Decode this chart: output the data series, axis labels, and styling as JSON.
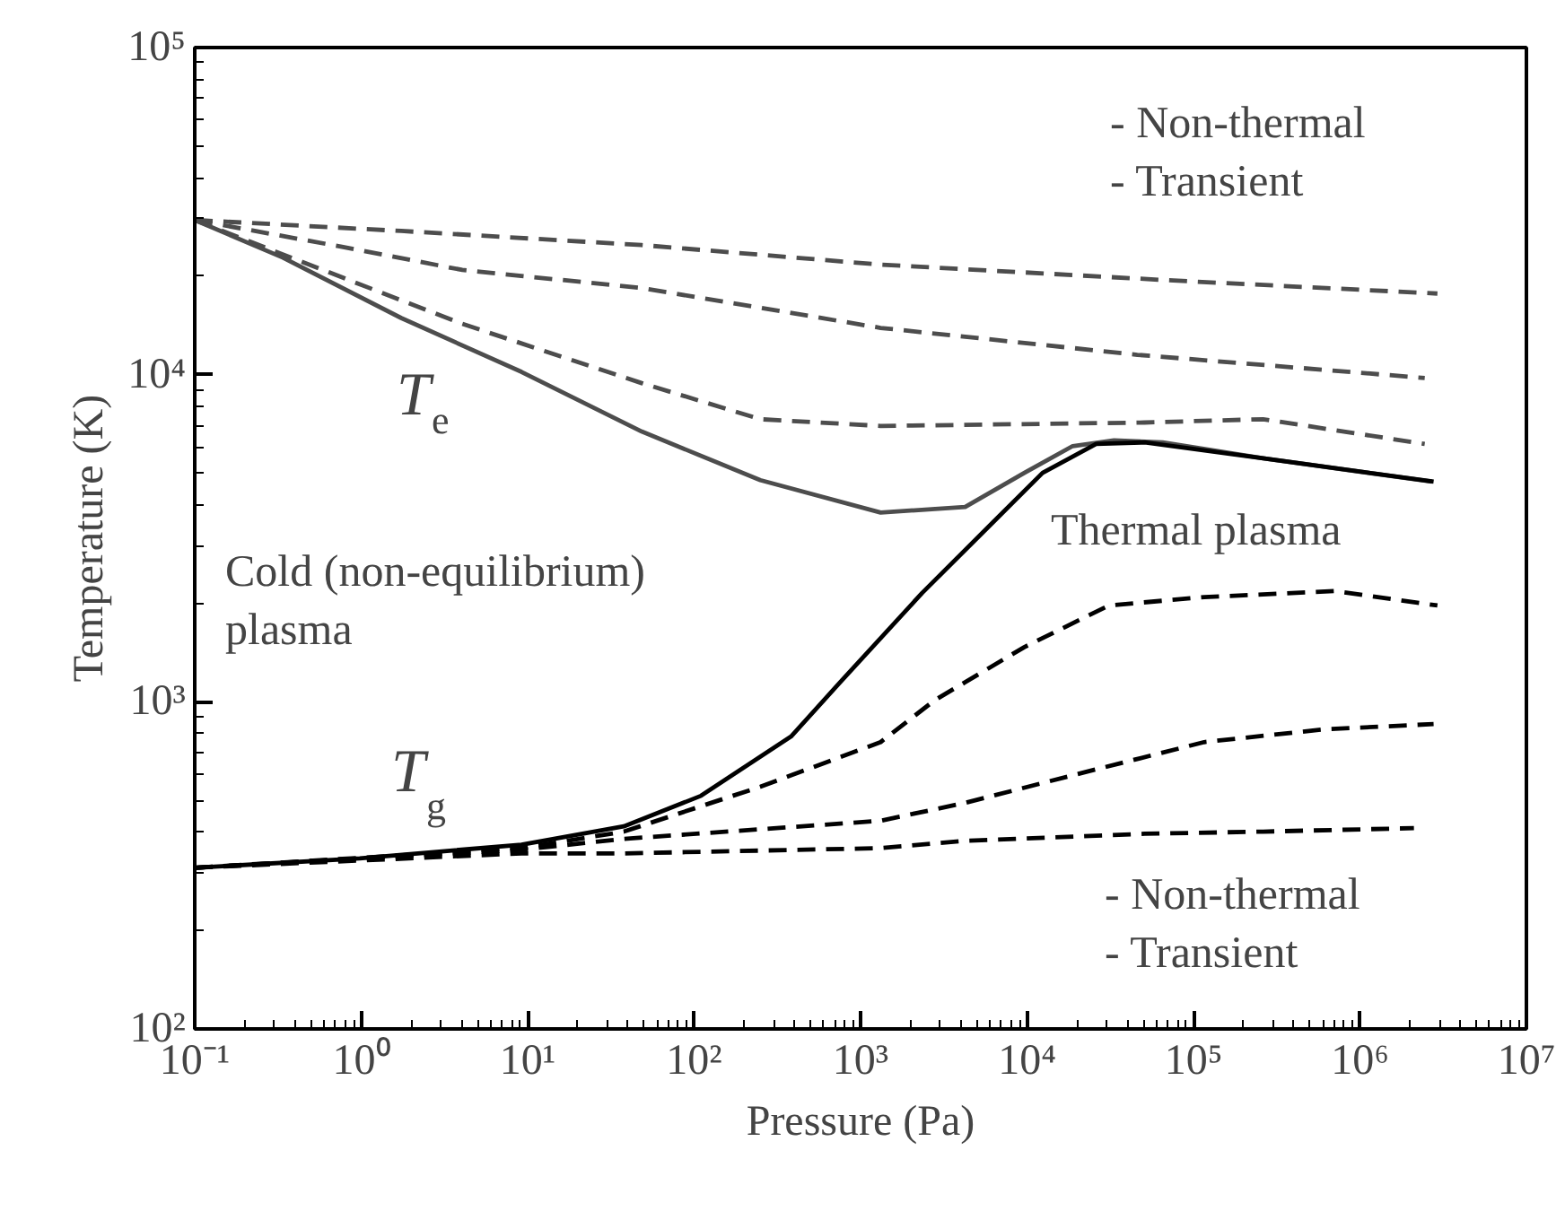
{
  "chart_data": {
    "type": "line",
    "xlabel": "Pressure (Pa)",
    "ylabel": "Temperature (K)",
    "log": "xy",
    "grid": false,
    "marker": "none",
    "xlim": [
      0.1,
      10000000
    ],
    "ylim": [
      100,
      100000
    ],
    "xticks": [
      {
        "value": 0.1,
        "label": "10⁻¹"
      },
      {
        "value": 1,
        "label": "10⁰"
      },
      {
        "value": 10,
        "label": "10¹"
      },
      {
        "value": 100,
        "label": "10²"
      },
      {
        "value": 1000,
        "label": "10³"
      },
      {
        "value": 10000,
        "label": "10⁴"
      },
      {
        "value": 100000,
        "label": "10⁵"
      },
      {
        "value": 1000000,
        "label": "10⁶"
      },
      {
        "value": 10000000,
        "label": "10⁷"
      }
    ],
    "yticks": [
      {
        "value": 100,
        "label": "10²"
      },
      {
        "value": 1000,
        "label": "10³"
      },
      {
        "value": 10000,
        "label": "10⁴"
      },
      {
        "value": 100000,
        "label": "10⁵"
      }
    ],
    "series": [
      {
        "color": "#4d4d4d",
        "line_style": "dashed",
        "x": [
          0.1,
          1.74,
          48.5,
          1320,
          75700,
          2920000
        ],
        "values": [
          29700,
          27500,
          24900,
          21700,
          19400,
          17700
        ]
      },
      {
        "color": "#4d4d4d",
        "line_style": "dashed",
        "x": [
          0.1,
          0.767,
          4.05,
          48.5,
          1320,
          46000,
          2450000
        ],
        "values": [
          29700,
          24600,
          20900,
          18400,
          13900,
          11500,
          9770
        ]
      },
      {
        "color": "#4d4d4d",
        "line_style": "dashed",
        "x": [
          0.1,
          0.433,
          4.05,
          48.5,
          250,
          1320,
          50900,
          262000,
          2450000
        ],
        "values": [
          29700,
          22200,
          14300,
          9420,
          7310,
          6970,
          7140,
          7310,
          6140
        ]
      },
      {
        "color": "#4d4d4d",
        "line_style": "solid",
        "x": [
          0.1,
          0.338,
          1.74,
          9.18,
          48.5,
          250,
          1320,
          4250,
          9640,
          18800,
          33300,
          65200,
          262000,
          2710000
        ],
        "values": [
          29700,
          22800,
          14900,
          10200,
          6700,
          4760,
          3790,
          3940,
          5010,
          6050,
          6300,
          6210,
          5550,
          4710
        ]
      },
      {
        "color": "#000000",
        "line_style": "solid",
        "x": [
          0.1,
          0.98,
          9.18,
          37.8,
          110,
          382,
          804,
          2340,
          6320,
          12400,
          26000,
          50900,
          262000,
          2770000
        ],
        "values": [
          311,
          332,
          366,
          416,
          516,
          783,
          1190,
          2150,
          3560,
          5010,
          6140,
          6210,
          5550,
          4710
        ]
      },
      {
        "color": "#000000",
        "line_style": "dashed",
        "x": [
          0.1,
          9.18,
          37.8,
          250,
          1320,
          2780,
          9640,
          31000,
          116000,
          708000,
          2920000
        ],
        "values": [
          311,
          357,
          401,
          550,
          753,
          1010,
          1470,
          1970,
          2090,
          2180,
          1970
        ]
      },
      {
        "color": "#000000",
        "line_style": "dashed",
        "x": [
          0.1,
          9.18,
          37.8,
          1320,
          4250,
          21900,
          116000,
          610000,
          2770000
        ],
        "values": [
          311,
          353,
          381,
          433,
          491,
          608,
          753,
          824,
          855
        ]
      },
      {
        "color": "#000000",
        "line_style": "dashed",
        "x": [
          0.1,
          9.18,
          37.8,
          1320,
          4250,
          50900,
          262000,
          2110000
        ],
        "values": [
          311,
          344,
          344,
          357,
          376,
          395,
          401,
          411
        ]
      }
    ],
    "annotations": [
      "T$_{e}$",
      "T$_{g}$",
      "Cold (non-equilibrium)\nplasma",
      "Thermal plasma",
      "- Non-thermal\n- Transient",
      "- Non-thermal\n- Transient"
    ]
  }
}
